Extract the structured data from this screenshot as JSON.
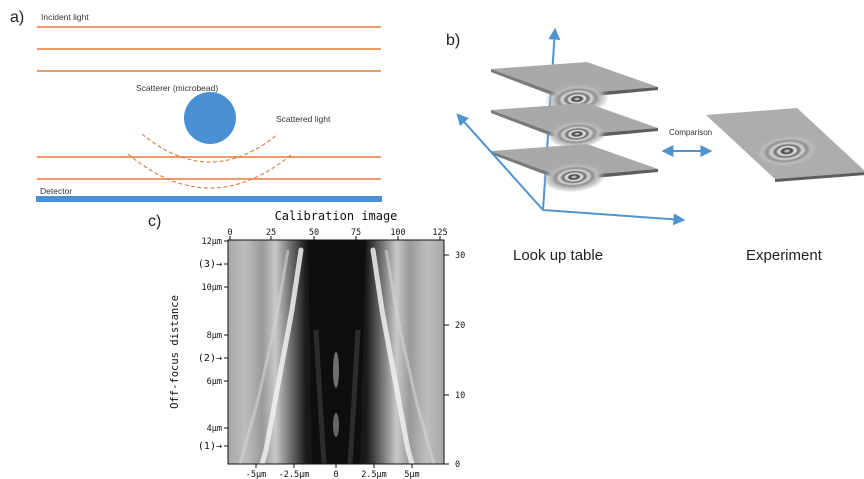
{
  "panel_a": {
    "label": "a)",
    "incident_light": "Incident light",
    "scatterer": "Scatterer (microbead)",
    "scattered_light": "Scattered light",
    "detector": "Detector",
    "colors": {
      "light": "#e07b39",
      "bead": "#4a90d4",
      "detector": "#4a90d4"
    }
  },
  "panel_b": {
    "label": "b)",
    "comparison": "Comparison",
    "look_up_table": "Look up table",
    "experiment": "Experiment",
    "colors": {
      "axis": "#4f93cf",
      "plane": "#a6a6a6"
    }
  },
  "panel_c": {
    "label": "c)",
    "title": "Calibration image",
    "ylabel": "Off-focus distance",
    "top_ticks": [
      "0",
      "25",
      "50",
      "75",
      "100",
      "125"
    ],
    "right_ticks": [
      "0",
      "10",
      "20",
      "30"
    ],
    "left_ticks": [
      "12µm",
      "10µm",
      "8µm",
      "6µm",
      "4µm"
    ],
    "markers": [
      "(3)→",
      "(2)→",
      "(1)→"
    ],
    "bottom_ticks": [
      "-5µm",
      "-2.5µm",
      "0",
      "2.5µm",
      "5µm"
    ]
  }
}
